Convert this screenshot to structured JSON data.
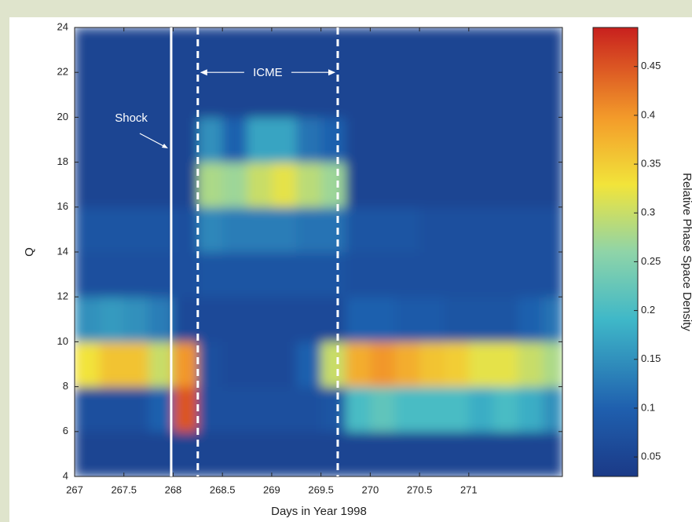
{
  "chart_data": {
    "type": "heatmap",
    "xlabel": "Days in Year 1998",
    "ylabel": "Q",
    "colorbar_label": "Relative Phase Space Density",
    "x_edges": [
      267,
      267.25,
      267.5,
      267.75,
      268,
      268.25,
      268.5,
      268.75,
      269,
      269.25,
      269.5,
      269.75,
      270,
      270.25,
      270.5,
      270.75,
      271,
      271.25,
      271.5,
      271.75,
      271.95
    ],
    "y_edges": [
      4,
      6,
      8,
      10,
      12,
      14,
      16,
      18,
      20,
      22,
      24
    ],
    "z": [
      [
        0.05,
        0.05,
        0.05,
        0.05,
        0.05,
        0.05,
        0.05,
        0.05,
        0.05,
        0.05,
        0.05,
        0.05,
        0.05,
        0.05,
        0.05,
        0.05,
        0.05,
        0.05,
        0.05,
        0.05
      ],
      [
        0.07,
        0.07,
        0.07,
        0.1,
        0.45,
        0.07,
        0.07,
        0.07,
        0.07,
        0.07,
        0.08,
        0.2,
        0.22,
        0.2,
        0.2,
        0.2,
        0.18,
        0.2,
        0.18,
        0.15
      ],
      [
        0.33,
        0.36,
        0.36,
        0.3,
        0.4,
        0.07,
        0.06,
        0.06,
        0.06,
        0.1,
        0.3,
        0.38,
        0.4,
        0.38,
        0.36,
        0.35,
        0.32,
        0.32,
        0.3,
        0.28
      ],
      [
        0.15,
        0.16,
        0.15,
        0.13,
        0.06,
        0.06,
        0.06,
        0.06,
        0.06,
        0.06,
        0.06,
        0.1,
        0.1,
        0.09,
        0.09,
        0.08,
        0.08,
        0.08,
        0.1,
        0.12
      ],
      [
        0.07,
        0.07,
        0.07,
        0.07,
        0.07,
        0.08,
        0.08,
        0.08,
        0.08,
        0.08,
        0.08,
        0.07,
        0.07,
        0.07,
        0.07,
        0.07,
        0.07,
        0.07,
        0.07,
        0.07
      ],
      [
        0.08,
        0.08,
        0.08,
        0.08,
        0.07,
        0.14,
        0.13,
        0.13,
        0.13,
        0.12,
        0.12,
        0.08,
        0.08,
        0.08,
        0.07,
        0.07,
        0.07,
        0.07,
        0.07,
        0.07
      ],
      [
        0.05,
        0.05,
        0.05,
        0.05,
        0.05,
        0.28,
        0.27,
        0.3,
        0.32,
        0.29,
        0.27,
        0.05,
        0.05,
        0.05,
        0.05,
        0.05,
        0.05,
        0.05,
        0.05,
        0.05
      ],
      [
        0.05,
        0.05,
        0.05,
        0.05,
        0.05,
        0.15,
        0.1,
        0.17,
        0.17,
        0.12,
        0.1,
        0.05,
        0.05,
        0.05,
        0.05,
        0.05,
        0.05,
        0.05,
        0.05,
        0.05
      ],
      [
        0.05,
        0.05,
        0.05,
        0.05,
        0.05,
        0.05,
        0.05,
        0.05,
        0.05,
        0.05,
        0.05,
        0.05,
        0.05,
        0.05,
        0.05,
        0.05,
        0.05,
        0.05,
        0.05,
        0.05
      ],
      [
        0.05,
        0.05,
        0.05,
        0.05,
        0.05,
        0.05,
        0.05,
        0.05,
        0.05,
        0.05,
        0.05,
        0.05,
        0.05,
        0.05,
        0.05,
        0.05,
        0.05,
        0.05,
        0.05,
        0.05
      ]
    ],
    "xlim": [
      267,
      271.95
    ],
    "ylim": [
      4,
      24
    ],
    "xticks": [
      267,
      267.5,
      268,
      268.5,
      269,
      269.5,
      270,
      270.5,
      271
    ],
    "yticks": [
      4,
      6,
      8,
      10,
      12,
      14,
      16,
      18,
      20,
      22,
      24
    ],
    "clim": [
      0.03,
      0.49
    ],
    "cticks": [
      0.05,
      0.1,
      0.15,
      0.2,
      0.25,
      0.3,
      0.35,
      0.4,
      0.45
    ],
    "markers": [
      {
        "x": 267.98,
        "style": "solid",
        "label": "Shock"
      },
      {
        "x": 268.25,
        "style": "dashed"
      },
      {
        "x": 269.67,
        "style": "dashed"
      }
    ],
    "span_label": "ICME",
    "span_y": 22
  }
}
